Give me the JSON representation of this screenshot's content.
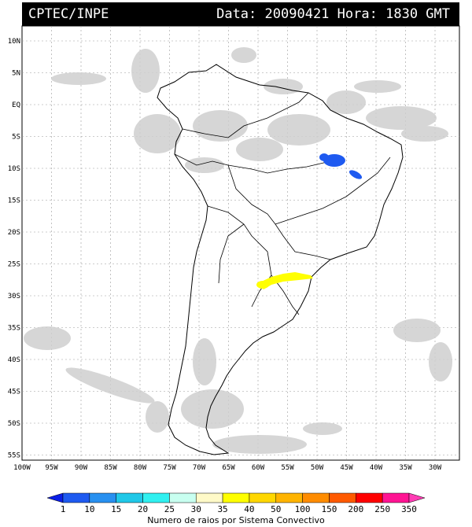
{
  "header": {
    "source": "CPTEC/INPE",
    "date_label": "Data:",
    "date_value": "20090421",
    "time_label": "Hora:",
    "time_value": "1830 GMT"
  },
  "lat_labels": [
    "10N",
    "5N",
    "EQ",
    "5S",
    "10S",
    "15S",
    "20S",
    "25S",
    "30S",
    "35S",
    "40S",
    "45S",
    "50S",
    "55S"
  ],
  "lon_labels": [
    "100W",
    "95W",
    "90W",
    "85W",
    "80W",
    "75W",
    "70W",
    "65W",
    "60W",
    "55W",
    "50W",
    "45W",
    "40W",
    "35W",
    "30W"
  ],
  "colorbar": {
    "title": "Numero de raios por Sistema Convectivo",
    "values": [
      "1",
      "10",
      "15",
      "20",
      "25",
      "30",
      "35",
      "40",
      "50",
      "100",
      "150",
      "200",
      "250",
      "350"
    ],
    "colors": [
      "#0a1ee6",
      "#1e5af0",
      "#2890f0",
      "#20c8e8",
      "#30f0f0",
      "#c8fff0",
      "#fffac8",
      "#ffff00",
      "#ffd700",
      "#ffb400",
      "#ff8c00",
      "#ff5a00",
      "#ff0000",
      "#ff1493",
      "#ff3cb4"
    ]
  },
  "lightning_systems": [
    {
      "region": "NE Brazil",
      "color": "#1e5af0"
    },
    {
      "region": "S Brazil / Paraguay",
      "color": "#ffff00"
    }
  ]
}
